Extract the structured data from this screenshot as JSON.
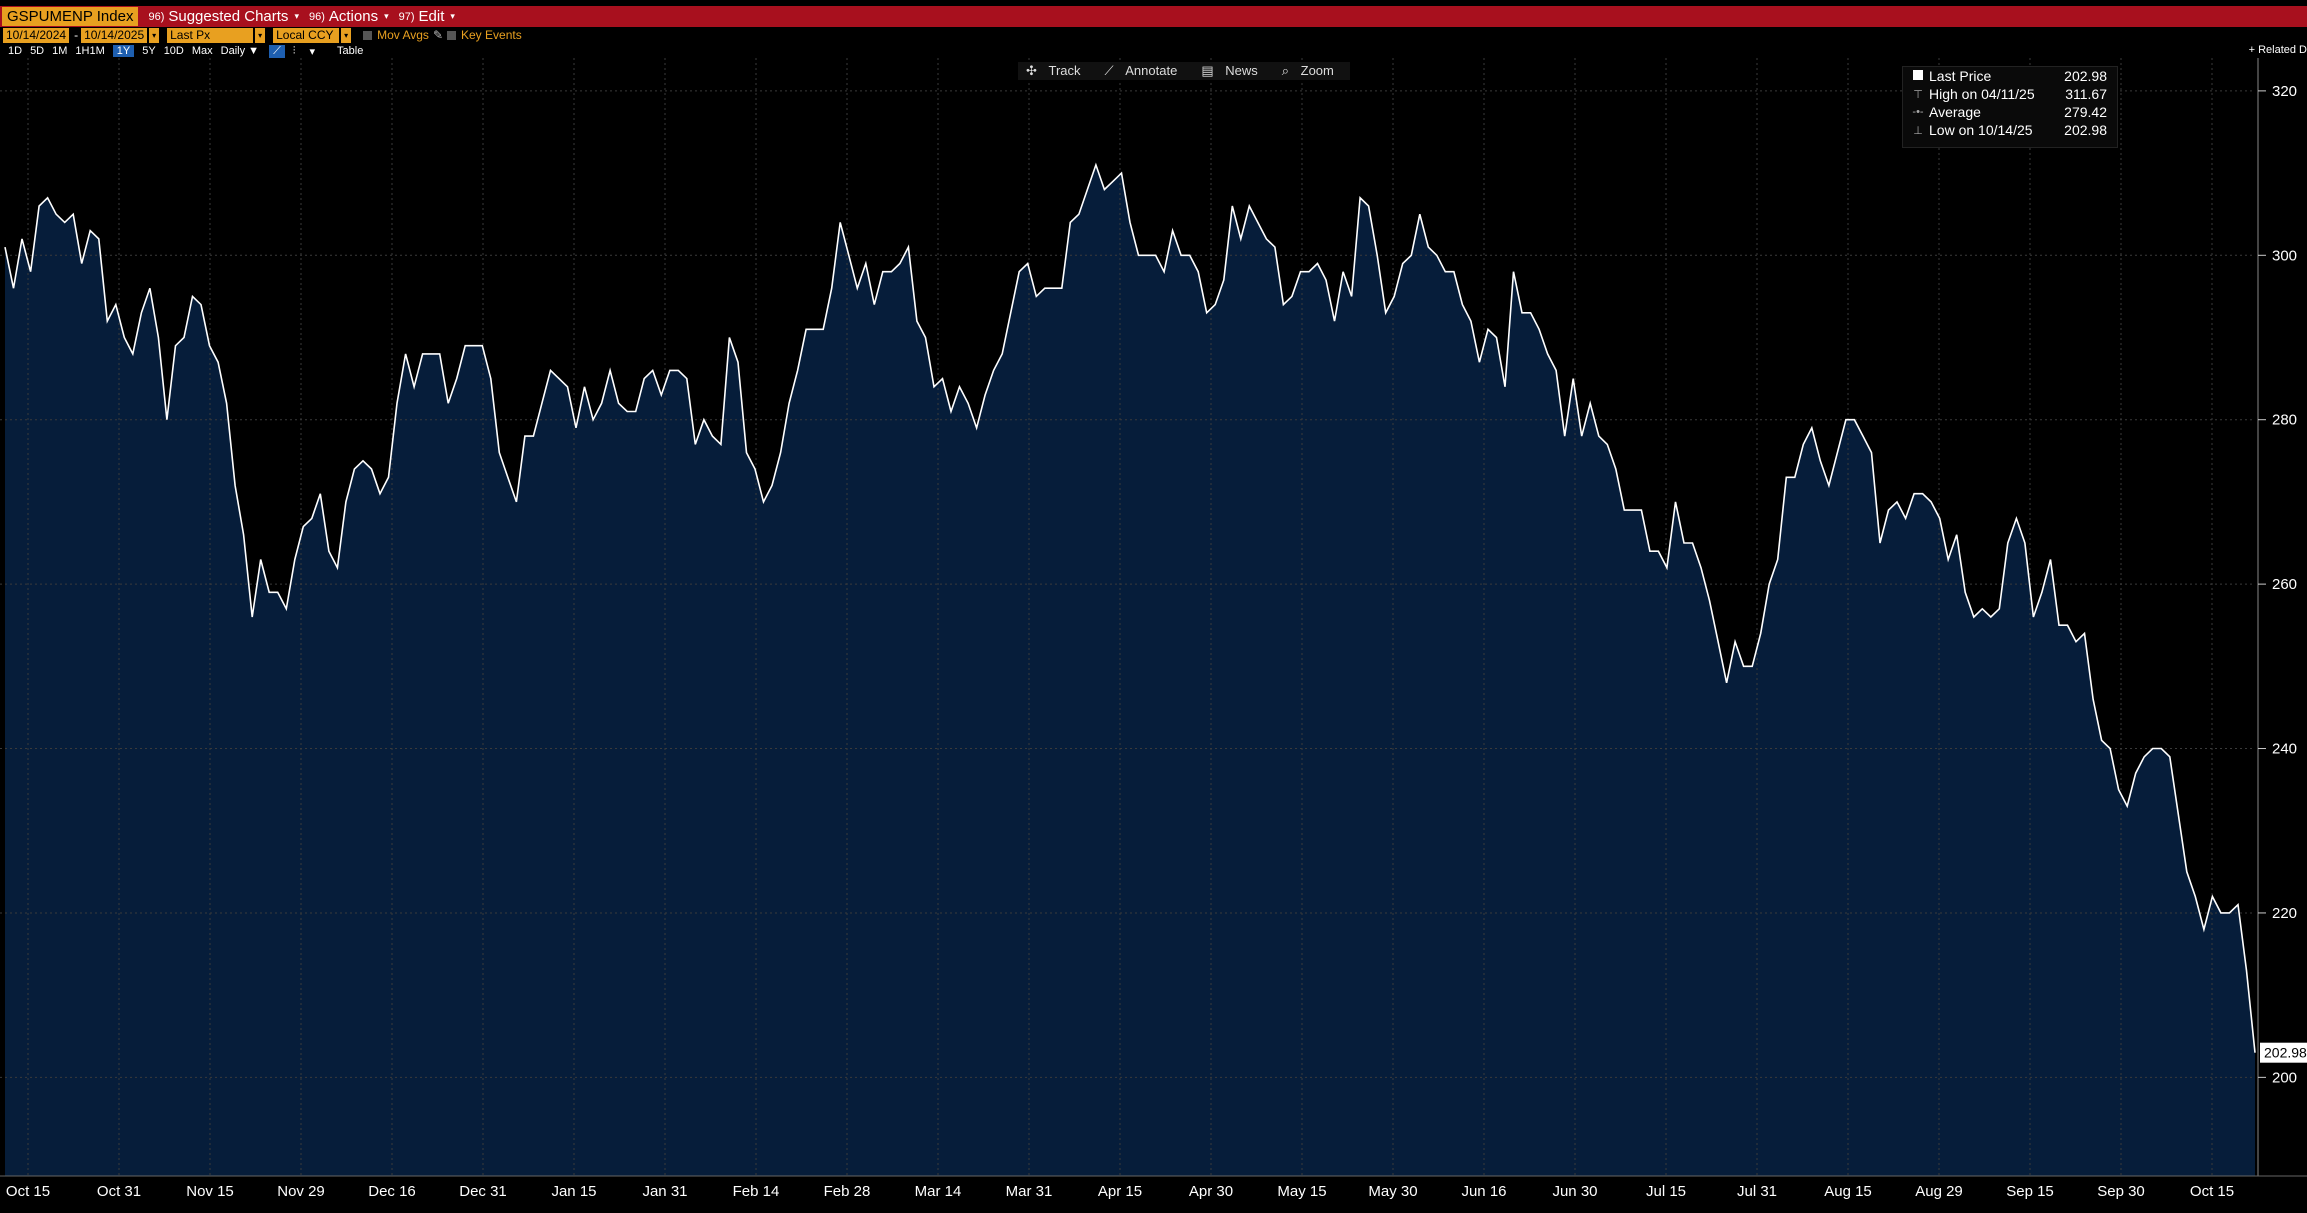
{
  "header": {
    "ticker": "GSPUMENP Index",
    "menu": [
      {
        "num": "96)",
        "label": "Suggested Charts"
      },
      {
        "num": "96)",
        "label": "Actions"
      },
      {
        "num": "97)",
        "label": "Edit"
      }
    ]
  },
  "controls": {
    "start_date": "10/14/2024",
    "end_date": "10/14/2025",
    "field": "Last Px",
    "currency": "Local CCY",
    "mov_avgs": "Mov Avgs",
    "key_events": "Key Events"
  },
  "ranges": [
    "1D",
    "5D",
    "1M",
    "1H1M",
    "1Y",
    "5Y",
    "10D",
    "Max",
    "Daily ▼"
  ],
  "selected_range": "1Y",
  "table_label": "Table",
  "related": "+ Related D",
  "toolbar": [
    "Track",
    "Annotate",
    "News",
    "Zoom"
  ],
  "legend": [
    {
      "label": "Last Price",
      "value": "202.98"
    },
    {
      "label": "High on 04/11/25",
      "value": "311.67"
    },
    {
      "label": "Average",
      "value": "279.42"
    },
    {
      "label": "Low on 10/14/25",
      "value": "202.98"
    }
  ],
  "colors": {
    "fill": "#061d3a",
    "line": "#ffffff",
    "grid": "#3a3a3a",
    "header": "#a8101e",
    "accent": "#e8a020"
  },
  "chart_data": {
    "type": "area",
    "y_ticks": [
      200,
      220,
      240,
      260,
      280,
      300,
      320
    ],
    "ylim": [
      188,
      324
    ],
    "x_tick_labels": [
      "Oct 15",
      "Oct 31",
      "Nov 15",
      "Nov 29",
      "Dec 16",
      "Dec 31",
      "Jan 15",
      "Jan 31",
      "Feb 14",
      "Feb 28",
      "Mar 14",
      "Mar 31",
      "Apr 15",
      "Apr 30",
      "May 15",
      "May 30",
      "Jun 16",
      "Jun 30",
      "Jul 15",
      "Jul 31",
      "Aug 15",
      "Aug 29",
      "Sep 15",
      "Sep 30",
      "Oct 15"
    ],
    "last_value_label": "202.98",
    "values": [
      301,
      296,
      302,
      298,
      306,
      307,
      305,
      304,
      305,
      299,
      303,
      302,
      292,
      294,
      290,
      288,
      293,
      296,
      290,
      280,
      289,
      290,
      295,
      294,
      289,
      287,
      282,
      272,
      266,
      256,
      263,
      259,
      259,
      257,
      263,
      267,
      268,
      271,
      264,
      262,
      270,
      274,
      275,
      274,
      271,
      273,
      282,
      288,
      284,
      288,
      288,
      288,
      282,
      285,
      289,
      289,
      289,
      285,
      276,
      273,
      270,
      278,
      278,
      282,
      286,
      285,
      284,
      279,
      284,
      280,
      282,
      286,
      282,
      281,
      281,
      285,
      286,
      283,
      286,
      286,
      285,
      277,
      280,
      278,
      277,
      290,
      287,
      276,
      274,
      270,
      272,
      276,
      282,
      286,
      291,
      291,
      291,
      296,
      304,
      300,
      296,
      299,
      294,
      298,
      298,
      299,
      301,
      292,
      290,
      284,
      285,
      281,
      284,
      282,
      279,
      283,
      286,
      288,
      293,
      298,
      299,
      295,
      296,
      296,
      296,
      304,
      305,
      308,
      311,
      308,
      309,
      310,
      304,
      300,
      300,
      300,
      298,
      303,
      300,
      300,
      298,
      293,
      294,
      297,
      306,
      302,
      306,
      304,
      302,
      301,
      294,
      295,
      298,
      298,
      299,
      297,
      292,
      298,
      295,
      307,
      306,
      300,
      293,
      295,
      299,
      300,
      305,
      301,
      300,
      298,
      298,
      294,
      292,
      287,
      291,
      290,
      284,
      298,
      293,
      293,
      291,
      288,
      286,
      278,
      285,
      278,
      282,
      278,
      277,
      274,
      269,
      269,
      269,
      264,
      264,
      262,
      270,
      265,
      265,
      262,
      258,
      253,
      248,
      253,
      250,
      250,
      254,
      260,
      263,
      273,
      273,
      277,
      279,
      275,
      272,
      276,
      280,
      280,
      278,
      276,
      265,
      269,
      270,
      268,
      271,
      271,
      270,
      268,
      263,
      266,
      259,
      256,
      257,
      256,
      257,
      265,
      268,
      265,
      256,
      259,
      263,
      255,
      255,
      253,
      254,
      246,
      241,
      240,
      235,
      233,
      237,
      239,
      240,
      240,
      239,
      232,
      225,
      222,
      218,
      222,
      220,
      220,
      221,
      213,
      203
    ]
  }
}
